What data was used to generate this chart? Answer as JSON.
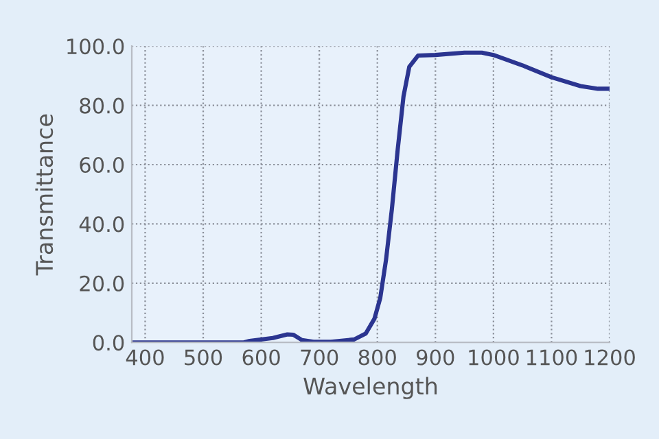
{
  "chart_data": {
    "type": "line",
    "xlabel": "Wavelength",
    "ylabel": "Transmittance",
    "x": [
      377,
      570,
      580,
      620,
      645,
      655,
      670,
      690,
      720,
      760,
      780,
      795,
      805,
      815,
      825,
      835,
      845,
      855,
      870,
      900,
      950,
      980,
      1000,
      1050,
      1100,
      1150,
      1180,
      1200
    ],
    "series": [
      {
        "color": "#2b3590",
        "values": [
          0,
          0,
          0.5,
          1.5,
          2.7,
          2.6,
          0.8,
          0.2,
          0.2,
          1,
          3,
          8,
          15,
          28,
          45,
          65,
          83,
          93,
          96.8,
          97,
          97.8,
          97.8,
          97,
          93.5,
          89.5,
          86.5,
          85.6,
          85.6
        ]
      }
    ],
    "xlim": [
      377,
      1200
    ],
    "xticks": [
      400,
      500,
      600,
      700,
      800,
      900,
      1000,
      1100,
      1200
    ],
    "ylim": [
      0,
      100
    ],
    "yticks": [
      {
        "value": 0,
        "label": "0.0"
      },
      {
        "value": 20,
        "label": "20.0"
      },
      {
        "value": 40,
        "label": "40.0"
      },
      {
        "value": 60,
        "label": "60.0"
      },
      {
        "value": 80,
        "label": "80.0"
      },
      {
        "value": 100,
        "label": "100.0"
      }
    ],
    "grid": true,
    "line_style": "solid",
    "marker": "none"
  }
}
